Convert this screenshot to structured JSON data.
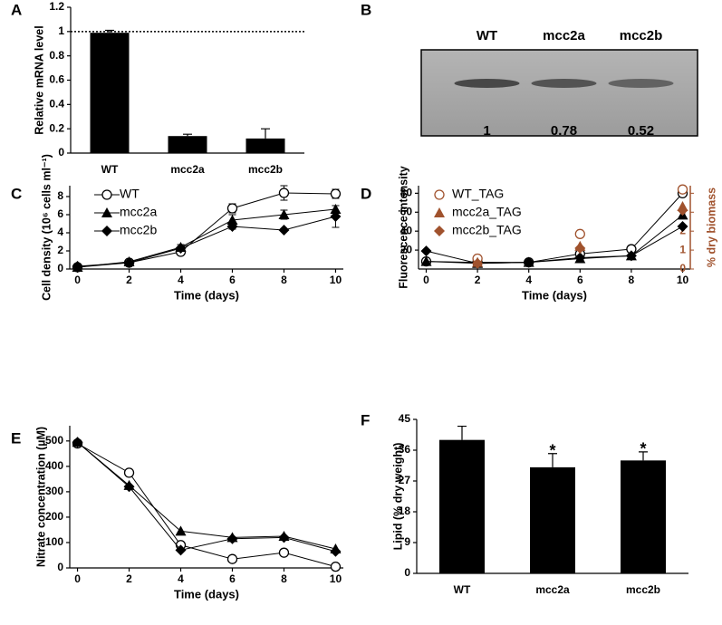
{
  "chart_data": [
    {
      "type": "bar",
      "panel": "A",
      "ylabel": "Relative mRNA level",
      "categories": [
        "WT",
        "mcc2a",
        "mcc2b"
      ],
      "values": [
        0.99,
        0.14,
        0.12
      ],
      "errors": [
        0.02,
        0.015,
        0.08
      ],
      "color": "#000000",
      "ylim": [
        0,
        1.2
      ],
      "yticks": [
        0,
        0.2,
        0.4,
        0.6,
        0.8,
        1,
        1.2
      ],
      "hline": 1
    },
    {
      "type": "blot",
      "panel": "B",
      "categories": [
        "WT",
        "mcc2a",
        "mcc2b"
      ],
      "values": [
        1,
        0.78,
        0.52
      ]
    },
    {
      "type": "line",
      "panel": "C",
      "ylabel": "Cell density (10⁶ cells ml⁻¹)",
      "xlabel": "Time (days)",
      "x": [
        0,
        2,
        4,
        6,
        8,
        10
      ],
      "xlim": [
        -0.3,
        10.3
      ],
      "xticks": [
        0,
        2,
        4,
        6,
        8,
        10
      ],
      "ylim": [
        0,
        9.2
      ],
      "yticks": [
        0,
        2,
        4,
        6,
        8
      ],
      "series": [
        {
          "name": "WT",
          "color": "#000000",
          "marker": "o",
          "values": [
            0.2,
            0.7,
            1.9,
            6.7,
            8.4,
            8.3
          ],
          "errors": [
            0.1,
            0.1,
            0.2,
            0.5,
            0.8,
            0.5
          ]
        },
        {
          "name": "mcc2a",
          "color": "#000000",
          "marker": "^",
          "values": [
            0.2,
            0.8,
            2.4,
            5.4,
            6.0,
            6.6
          ],
          "errors": [
            0.1,
            0.1,
            0.3,
            0.6,
            0.5,
            0.4
          ]
        },
        {
          "name": "mcc2b",
          "color": "#000000",
          "marker": "D",
          "values": [
            0.3,
            0.7,
            2.3,
            4.7,
            4.3,
            5.8
          ],
          "errors": [
            0.1,
            0.1,
            0.2,
            0.3,
            0.1,
            1.2
          ]
        }
      ]
    },
    {
      "type": "line",
      "panel": "D",
      "ylabel": "Fluorescence intensity",
      "y2label": "% dry biomass",
      "xlabel": "Time (days)",
      "x": [
        0,
        2,
        4,
        6,
        8,
        10
      ],
      "xlim": [
        -0.3,
        10.3
      ],
      "xticks": [
        0,
        2,
        4,
        6,
        8,
        10
      ],
      "ylim": [
        0,
        88
      ],
      "yticks": [
        20,
        40,
        60,
        80
      ],
      "y2lim": [
        0,
        4.4
      ],
      "y2ticks": [
        0,
        1,
        2,
        3,
        4
      ],
      "y2color": "#a0522d",
      "series": [
        {
          "color": "#000000",
          "marker": "o",
          "values": [
            8,
            7,
            7,
            16,
            21,
            80
          ]
        },
        {
          "color": "#000000",
          "marker": "^",
          "values": [
            8,
            6,
            7,
            11,
            14,
            57
          ]
        },
        {
          "color": "#000000",
          "marker": "D",
          "values": [
            19,
            6,
            7,
            12,
            14,
            45
          ]
        },
        {
          "name": "WT_TAG",
          "color": "#a0522d",
          "marker": "o",
          "axis": "y2",
          "line": false,
          "values": [
            null,
            0.55,
            null,
            1.85,
            null,
            4.2
          ]
        },
        {
          "name": "mcc2a_TAG",
          "color": "#a0522d",
          "marker": "^",
          "axis": "y2",
          "line": false,
          "values": [
            null,
            0.35,
            null,
            1.2,
            null,
            3.3
          ]
        },
        {
          "name": "mcc2b_TAG",
          "color": "#a0522d",
          "marker": "D",
          "axis": "y2",
          "line": false,
          "values": [
            null,
            0.3,
            null,
            1.1,
            null,
            3.1
          ]
        }
      ]
    },
    {
      "type": "line",
      "panel": "E",
      "ylabel": "Nitrate concentration (µM)",
      "xlabel": "Time (days)",
      "x": [
        0,
        2,
        4,
        6,
        8,
        10
      ],
      "xlim": [
        -0.3,
        10.3
      ],
      "xticks": [
        0,
        2,
        4,
        6,
        8,
        10
      ],
      "ylim": [
        0,
        560
      ],
      "yticks": [
        0,
        100,
        200,
        300,
        400,
        500
      ],
      "series": [
        {
          "color": "#000000",
          "marker": "o",
          "values": [
            490,
            375,
            90,
            35,
            60,
            5
          ]
        },
        {
          "color": "#000000",
          "marker": "^",
          "values": [
            495,
            325,
            145,
            120,
            125,
            75
          ]
        },
        {
          "color": "#000000",
          "marker": "D",
          "values": [
            495,
            320,
            70,
            115,
            120,
            65
          ]
        }
      ]
    },
    {
      "type": "bar",
      "panel": "F",
      "ylabel": "Lipid (% dry weight)",
      "categories": [
        "WT",
        "mcc2a",
        "mcc2b"
      ],
      "values": [
        39,
        31,
        33
      ],
      "errors": [
        4,
        4,
        2.5
      ],
      "significance": [
        null,
        "*",
        "*"
      ],
      "color": "#000000",
      "ylim": [
        0,
        45
      ],
      "yticks": [
        0,
        9,
        18,
        27,
        36,
        45
      ]
    }
  ]
}
